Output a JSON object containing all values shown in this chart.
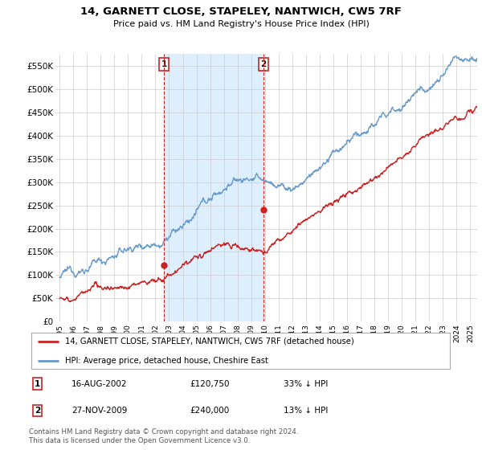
{
  "title": "14, GARNETT CLOSE, STAPELEY, NANTWICH, CW5 7RF",
  "subtitle": "Price paid vs. HM Land Registry's House Price Index (HPI)",
  "legend_line1": "14, GARNETT CLOSE, STAPELEY, NANTWICH, CW5 7RF (detached house)",
  "legend_line2": "HPI: Average price, detached house, Cheshire East",
  "annotation1_date": "16-AUG-2002",
  "annotation1_price": "£120,750",
  "annotation1_pct": "33% ↓ HPI",
  "annotation2_date": "27-NOV-2009",
  "annotation2_price": "£240,000",
  "annotation2_pct": "13% ↓ HPI",
  "footnote": "Contains HM Land Registry data © Crown copyright and database right 2024.\nThis data is licensed under the Open Government Licence v3.0.",
  "hpi_color": "#6699cc",
  "price_color": "#cc2222",
  "annotation_box_color": "#cc2222",
  "shade_color": "#ddeeff",
  "background_color": "#ffffff",
  "grid_color": "#cccccc",
  "ylim": [
    0,
    575000
  ],
  "yticks": [
    0,
    50000,
    100000,
    150000,
    200000,
    250000,
    300000,
    350000,
    400000,
    450000,
    500000,
    550000
  ],
  "ytick_labels": [
    "£0",
    "£50K",
    "£100K",
    "£150K",
    "£200K",
    "£250K",
    "£300K",
    "£350K",
    "£400K",
    "£450K",
    "£500K",
    "£550K"
  ],
  "x_start_year": 1995,
  "x_end_year": 2025,
  "sale1_year": 2002.62,
  "sale1_price": 120750,
  "sale2_year": 2009.9,
  "sale2_price": 240000
}
